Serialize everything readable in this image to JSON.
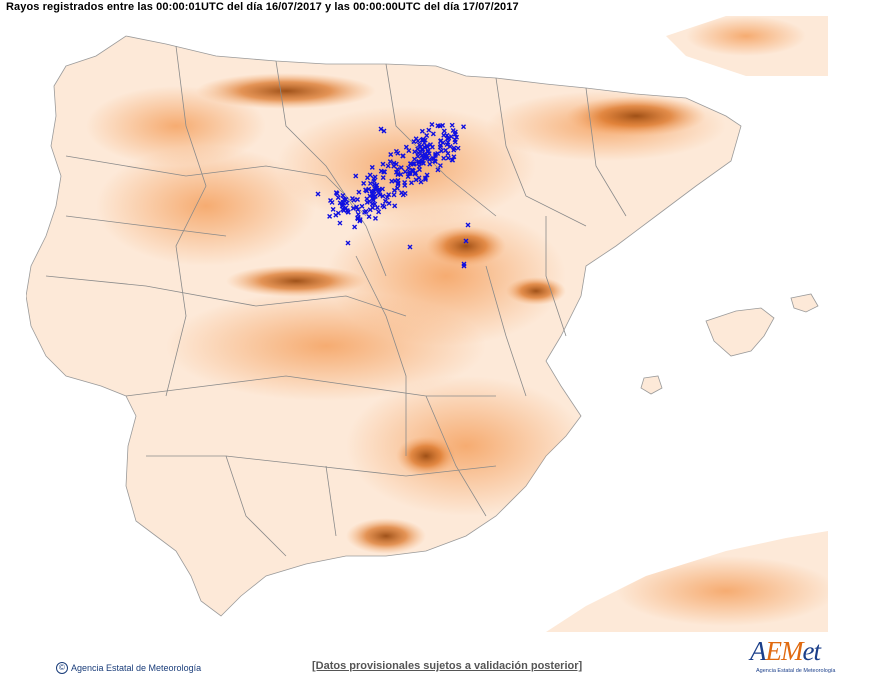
{
  "title": "Rayos registrados entre las 00:00:01UTC del día 16/07/2017 y las 00:00:00UTC del día 17/07/2017",
  "footer": {
    "copyright": "Agencia Estatal de Meteorología",
    "disclaimer": "[Datos provisionales sujetos a validación posterior]"
  },
  "logo": {
    "letter_a": "A",
    "letters_em": "EM",
    "letters_et": "et",
    "subtitle": "Agencia Estatal de Meteorología"
  },
  "colors": {
    "sea": "#ffffff",
    "land_low": "#fde9d8",
    "land_mid": "#f9c38f",
    "land_high": "#e87e28",
    "land_peak": "#7a3a0c",
    "borders": "#8a8a8a",
    "lightning": "#1010e0"
  }
}
